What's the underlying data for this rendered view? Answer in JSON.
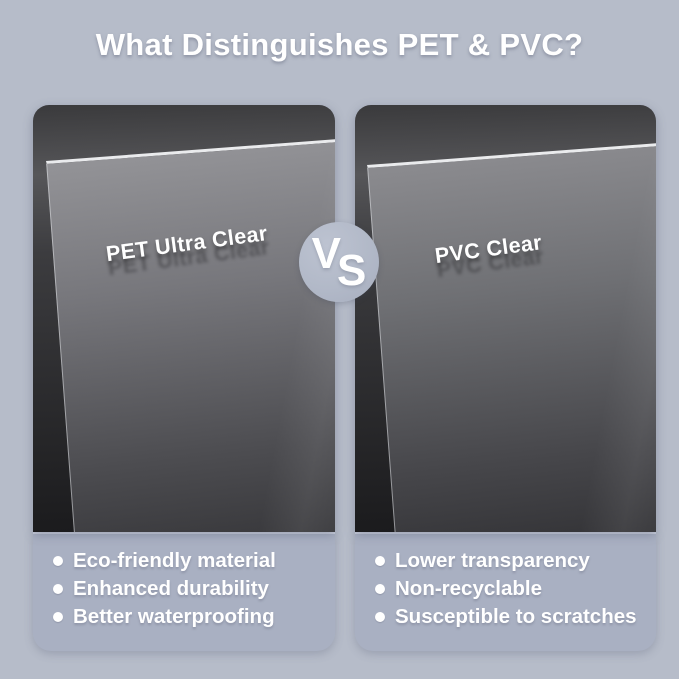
{
  "title": "What Distinguishes PET & PVC?",
  "vs_badge": {
    "text": "VS",
    "letters": {
      "v": "V",
      "s": "S"
    }
  },
  "cards": [
    {
      "id": "pet",
      "sheet_label": "PET Ultra Clear",
      "features": [
        "Eco-friendly material",
        "Enhanced durability",
        "Better waterproofing"
      ]
    },
    {
      "id": "pvc",
      "sheet_label": "PVC Clear",
      "features": [
        "Lower transparency",
        "Non-recyclable",
        "Susceptible to scratches"
      ]
    }
  ],
  "colors": {
    "page_background": "#b6bcc9",
    "feature_panel": "#a9b0c2",
    "dark_panel_top": "#3a3a3c",
    "dark_panel_bottom": "#1a1a1c",
    "sheet_pet_top": "#939397",
    "sheet_pvc_top": "#8b8b8f",
    "sheet_edge": "#eaebed",
    "vs_circle": "#b2b9c8",
    "text": "#ffffff"
  }
}
